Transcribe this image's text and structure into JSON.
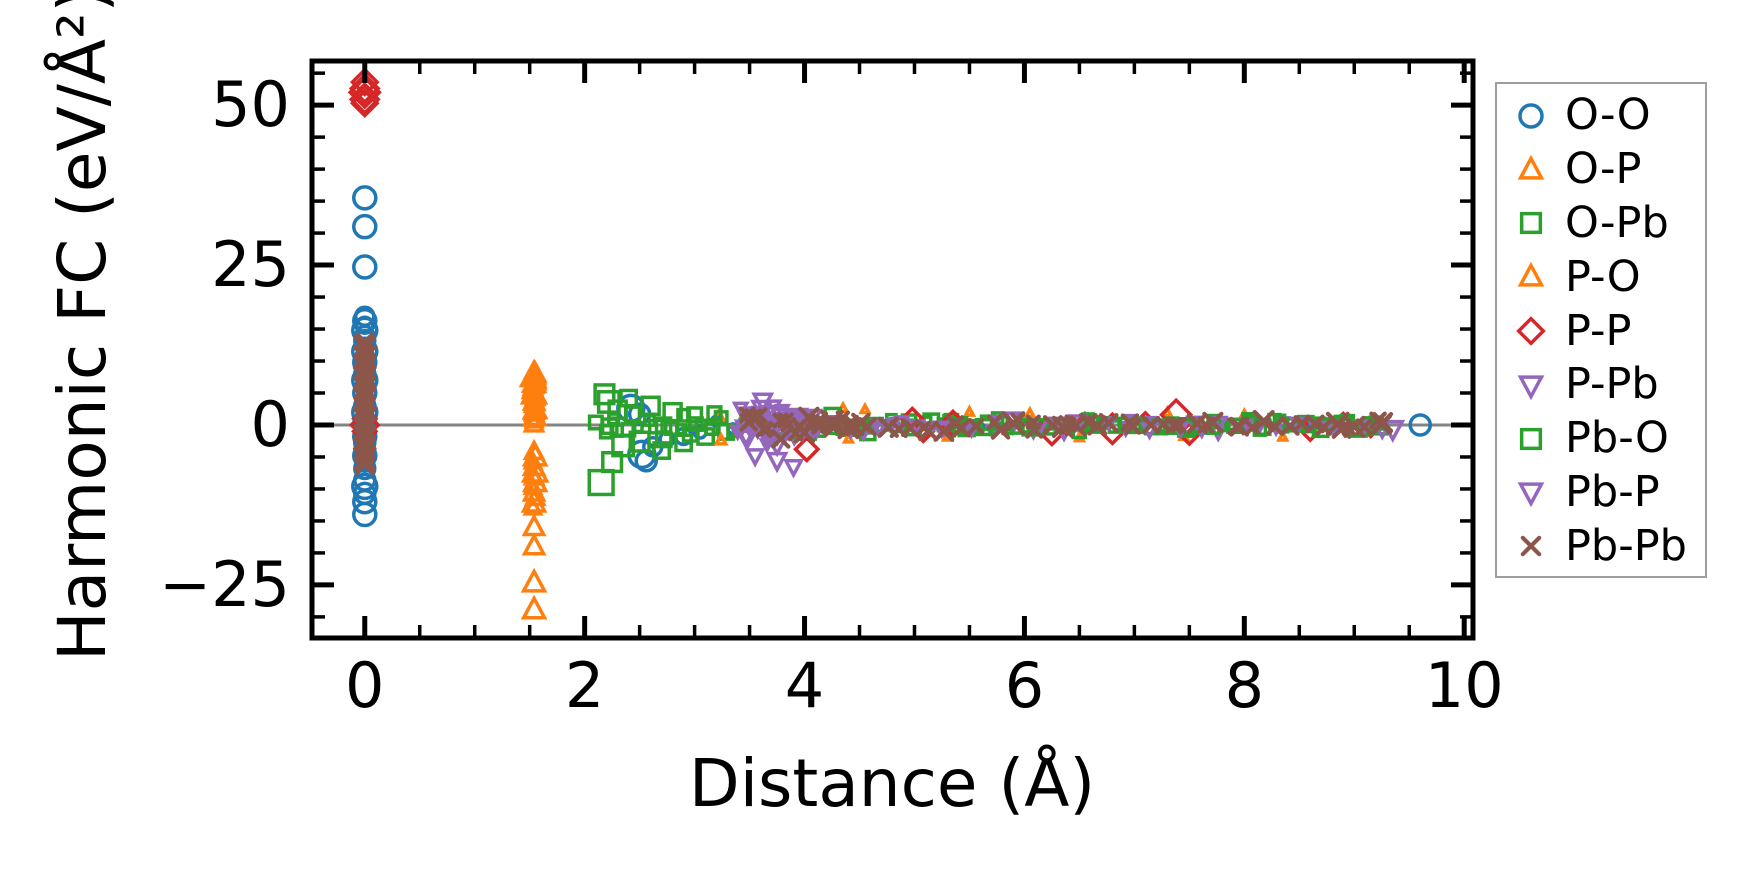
{
  "chart_data": {
    "type": "scatter",
    "title": "",
    "xlabel": "Distance (Å)",
    "ylabel": "Harmonic FC (eV/Å²)",
    "xlim": [
      -0.48,
      10.08
    ],
    "ylim": [
      -33.3,
      56.9
    ],
    "xticks": [
      0,
      2,
      4,
      6,
      8,
      10
    ],
    "xtick_labels": [
      "0",
      "2",
      "4",
      "6",
      "8",
      "10"
    ],
    "yticks": [
      50,
      25,
      0,
      -25
    ],
    "ytick_labels": [
      "50",
      "25",
      "0",
      "−25"
    ],
    "x_minor_step": 0.5,
    "y_minor_step": 5,
    "grid": false,
    "legend_position": "outside-right",
    "zero_line": {
      "y": 0,
      "color": "#848484"
    },
    "series": [
      {
        "name": "O-O",
        "marker": "circle",
        "color": "#1f77b4",
        "points": [
          [
            0,
            35.5,
            11
          ],
          [
            0,
            31.0,
            11
          ],
          [
            0,
            24.7,
            11
          ],
          [
            0,
            17.0,
            9
          ],
          [
            0,
            16.3,
            11
          ],
          [
            0,
            15.6,
            8
          ],
          [
            0,
            14.8,
            12
          ],
          [
            0,
            14.0,
            9
          ],
          [
            0,
            13.2,
            10
          ],
          [
            0,
            12.3,
            8
          ],
          [
            0,
            11.5,
            12
          ],
          [
            0,
            10.6,
            9
          ],
          [
            0,
            9.8,
            11
          ],
          [
            0,
            8.9,
            8
          ],
          [
            0,
            8.0,
            10
          ],
          [
            0,
            7.0,
            12
          ],
          [
            0,
            6.0,
            9
          ],
          [
            0,
            5.0,
            11
          ],
          [
            0,
            4.0,
            8
          ],
          [
            0,
            3.0,
            10
          ],
          [
            0,
            2.0,
            12
          ],
          [
            0,
            1.0,
            9
          ],
          [
            0,
            0.2,
            11
          ],
          [
            0,
            -0.8,
            9
          ],
          [
            0,
            -1.8,
            11
          ],
          [
            0,
            -2.8,
            10
          ],
          [
            0,
            -3.8,
            9
          ],
          [
            0,
            -4.8,
            11
          ],
          [
            0,
            -5.8,
            9
          ],
          [
            0,
            -6.8,
            10
          ],
          [
            0,
            -8.6,
            10
          ],
          [
            0,
            -9.6,
            12
          ],
          [
            0,
            -10.7,
            10
          ],
          [
            0,
            -12.0,
            11
          ],
          [
            0,
            -14.0,
            11
          ],
          [
            2.42,
            2.6,
            13
          ],
          [
            2.5,
            1.7,
            10
          ],
          [
            2.52,
            -4.6,
            13
          ],
          [
            2.56,
            -5.6,
            10
          ],
          [
            2.62,
            -3.4,
            9
          ],
          [
            2.75,
            -2.2,
            7
          ],
          [
            2.9,
            -1.8,
            8
          ],
          [
            3.05,
            -1.1,
            6
          ],
          [
            3.2,
            0.6,
            5
          ],
          [
            3.35,
            -0.6,
            5
          ],
          [
            4.15,
            0.4,
            4
          ],
          [
            5.6,
            -0.4,
            4
          ],
          [
            6.7,
            0.3,
            4
          ],
          [
            7.8,
            -0.3,
            4
          ],
          [
            8.42,
            0.2,
            5
          ],
          [
            8.55,
            -0.2,
            4
          ],
          [
            9.6,
            0.0,
            10
          ]
        ],
        "bands": []
      },
      {
        "name": "O-P",
        "marker": "triangle-up",
        "color": "#ff7f0e",
        "points": [
          [
            1.54,
            8.5,
            8
          ],
          [
            1.55,
            8.0,
            10
          ],
          [
            1.53,
            7.5,
            12
          ],
          [
            1.56,
            7.0,
            9
          ],
          [
            1.54,
            6.5,
            11
          ],
          [
            1.55,
            6.0,
            8
          ],
          [
            1.53,
            5.4,
            10
          ],
          [
            1.54,
            4.8,
            12
          ],
          [
            1.55,
            4.2,
            9
          ],
          [
            1.54,
            3.6,
            10
          ],
          [
            1.53,
            3.0,
            8
          ],
          [
            1.55,
            2.4,
            11
          ],
          [
            1.54,
            1.8,
            9
          ],
          [
            1.55,
            1.2,
            10
          ],
          [
            1.54,
            0.6,
            8
          ],
          [
            1.54,
            0.1,
            9
          ],
          [
            1.54,
            -4.2,
            9
          ],
          [
            1.55,
            -5.0,
            11
          ],
          [
            1.53,
            -5.8,
            8
          ],
          [
            1.54,
            -6.6,
            10
          ],
          [
            1.55,
            -7.4,
            12
          ],
          [
            3.22,
            1.4,
            5
          ],
          [
            4.35,
            2.6,
            4
          ],
          [
            4.55,
            2.4,
            4
          ],
          [
            5.5,
            2.0,
            4
          ],
          [
            6.05,
            1.8,
            4
          ],
          [
            7.3,
            1.9,
            4
          ],
          [
            8.0,
            1.6,
            4
          ]
        ],
        "bands": []
      },
      {
        "name": "O-Pb",
        "marker": "square",
        "color": "#2ca02c",
        "points": [
          [
            2.15,
            -9.0,
            14
          ],
          [
            2.18,
            4.8,
            11
          ],
          [
            2.22,
            3.6,
            12
          ],
          [
            2.25,
            -5.8,
            11
          ],
          [
            2.3,
            2.4,
            10
          ],
          [
            2.35,
            -3.2,
            12
          ],
          [
            2.4,
            4.2,
            9
          ],
          [
            2.5,
            -2.6,
            11
          ],
          [
            2.6,
            3.0,
            10
          ],
          [
            2.7,
            -4.0,
            9
          ],
          [
            2.8,
            2.0,
            10
          ],
          [
            2.9,
            -2.8,
            9
          ],
          [
            3.0,
            1.6,
            8
          ],
          [
            3.1,
            -1.8,
            9
          ]
        ],
        "bands": [
          {
            "x0": 2.1,
            "x1": 5.5,
            "y": 0,
            "s0": 2.8,
            "s1": 1.3,
            "n": 60,
            "r0": 5,
            "r1": 9,
            "seed": 11
          }
        ]
      },
      {
        "name": "P-O",
        "marker": "triangle-up",
        "color": "#ff7f0e",
        "points": [
          [
            1.54,
            7.8,
            11
          ],
          [
            1.55,
            6.8,
            10
          ],
          [
            1.53,
            5.8,
            9
          ],
          [
            1.54,
            4.6,
            10
          ],
          [
            1.55,
            3.4,
            9
          ],
          [
            1.54,
            2.2,
            10
          ],
          [
            1.53,
            1.0,
            9
          ],
          [
            1.54,
            -8.2,
            9
          ],
          [
            1.55,
            -9.0,
            11
          ],
          [
            1.53,
            -9.8,
            8
          ],
          [
            1.54,
            -10.6,
            10
          ],
          [
            1.55,
            -11.4,
            9
          ],
          [
            1.54,
            -12.2,
            11
          ],
          [
            1.53,
            -13.0,
            8
          ],
          [
            1.54,
            -16.0,
            10
          ],
          [
            1.54,
            -19.0,
            10
          ],
          [
            1.54,
            -24.7,
            11
          ],
          [
            1.54,
            -28.9,
            11
          ],
          [
            3.24,
            -2.4,
            5
          ],
          [
            4.4,
            -2.2,
            4
          ],
          [
            5.3,
            -1.9,
            4
          ],
          [
            6.5,
            -2.0,
            4
          ],
          [
            7.45,
            -1.8,
            4
          ],
          [
            8.35,
            -1.9,
            4
          ]
        ],
        "bands": []
      },
      {
        "name": "P-P",
        "marker": "diamond",
        "color": "#d62728",
        "points": [
          [
            0,
            53.6,
            11
          ],
          [
            0,
            52.6,
            12
          ],
          [
            0,
            52.0,
            13
          ],
          [
            0,
            51.5,
            10
          ],
          [
            0,
            50.9,
            12
          ],
          [
            0,
            50.3,
            11
          ],
          [
            0,
            1.0,
            10
          ],
          [
            0,
            0.0,
            12
          ],
          [
            0,
            -1.0,
            10
          ],
          [
            4.02,
            -3.8,
            10
          ],
          [
            4.98,
            1.0,
            9
          ],
          [
            5.08,
            -1.0,
            9
          ],
          [
            5.35,
            0.2,
            11
          ],
          [
            6.25,
            -1.3,
            10
          ],
          [
            6.55,
            0.4,
            8
          ],
          [
            6.8,
            -0.6,
            13
          ],
          [
            7.1,
            0.5,
            8
          ],
          [
            7.38,
            1.6,
            13
          ],
          [
            7.5,
            -1.4,
            9
          ],
          [
            8.1,
            0.6,
            8
          ],
          [
            8.6,
            -0.8,
            9
          ],
          [
            8.9,
            0.4,
            8
          ],
          [
            9.15,
            -0.4,
            8
          ]
        ],
        "bands": []
      },
      {
        "name": "P-Pb",
        "marker": "triangle-down",
        "color": "#9467bd",
        "points": [
          [
            3.62,
            3.8,
            9
          ],
          [
            3.55,
            -4.8,
            8
          ],
          [
            3.75,
            -5.5,
            9
          ],
          [
            3.9,
            -6.5,
            8
          ]
        ],
        "bands": [
          {
            "x0": 3.4,
            "x1": 4.05,
            "y": 0,
            "s0": 3.5,
            "s1": 3.5,
            "n": 30,
            "r0": 5,
            "r1": 9,
            "seed": 21
          },
          {
            "x0": 4.1,
            "x1": 9.0,
            "y": 0,
            "s0": 1.6,
            "s1": 1.2,
            "n": 25,
            "r0": 4,
            "r1": 8,
            "seed": 22
          }
        ]
      },
      {
        "name": "Pb-O",
        "marker": "square",
        "color": "#2ca02c",
        "points": [
          [
            9.2,
            0.3,
            7
          ],
          [
            9.1,
            -0.4,
            8
          ]
        ],
        "bands": [
          {
            "x0": 5.5,
            "x1": 9.22,
            "y": 0,
            "s0": 1.4,
            "s1": 1.1,
            "n": 60,
            "r0": 5,
            "r1": 9,
            "seed": 12
          }
        ]
      },
      {
        "name": "Pb-P",
        "marker": "triangle-down",
        "color": "#9467bd",
        "points": [
          [
            9.35,
            -0.6,
            10
          ]
        ],
        "bands": [
          {
            "x0": 3.45,
            "x1": 4.0,
            "y": 0,
            "s0": 3.0,
            "s1": 3.0,
            "n": 25,
            "r0": 5,
            "r1": 9,
            "seed": 31
          },
          {
            "x0": 4.2,
            "x1": 9.3,
            "y": 0,
            "s0": 1.5,
            "s1": 1.1,
            "n": 25,
            "r0": 4,
            "r1": 8,
            "seed": 32
          }
        ]
      },
      {
        "name": "Pb-Pb",
        "marker": "x",
        "color": "#8c564b",
        "points": [
          [
            0,
            13.0,
            9
          ],
          [
            0,
            12.2,
            11
          ],
          [
            0,
            11.4,
            8
          ],
          [
            0,
            10.6,
            12
          ],
          [
            0,
            9.8,
            9
          ],
          [
            0,
            9.0,
            11
          ],
          [
            0,
            8.2,
            8
          ],
          [
            0,
            7.4,
            12
          ],
          [
            0,
            6.6,
            9
          ],
          [
            0,
            5.8,
            11
          ],
          [
            0,
            5.0,
            8
          ],
          [
            0,
            4.2,
            12
          ],
          [
            0,
            3.4,
            9
          ],
          [
            0,
            2.6,
            11
          ],
          [
            0,
            1.8,
            8
          ],
          [
            0,
            1.0,
            12
          ],
          [
            0,
            0.2,
            9
          ],
          [
            0,
            -0.6,
            11
          ],
          [
            0,
            -1.4,
            8
          ],
          [
            0,
            -2.2,
            12
          ],
          [
            0,
            -3.0,
            9
          ],
          [
            0,
            -3.8,
            11
          ],
          [
            0,
            -4.6,
            9
          ],
          [
            0,
            -5.4,
            11
          ],
          [
            0,
            -6.2,
            10
          ],
          [
            4.25,
            0.5,
            12
          ],
          [
            4.4,
            -0.5,
            11
          ],
          [
            5.9,
            0.3,
            12
          ],
          [
            6.35,
            -0.3,
            11
          ],
          [
            8.85,
            0.2,
            12
          ],
          [
            9.0,
            -0.3,
            11
          ],
          [
            9.25,
            0.1,
            10
          ]
        ],
        "bands": [
          {
            "x0": 3.45,
            "x1": 4.45,
            "y": 0,
            "s0": 3.0,
            "s1": 2.2,
            "n": 25,
            "r0": 6,
            "r1": 11,
            "seed": 41
          },
          {
            "x0": 4.5,
            "x1": 9.3,
            "y": 0,
            "s0": 1.3,
            "s1": 1.0,
            "n": 45,
            "r0": 6,
            "r1": 11,
            "seed": 42
          }
        ]
      }
    ]
  }
}
